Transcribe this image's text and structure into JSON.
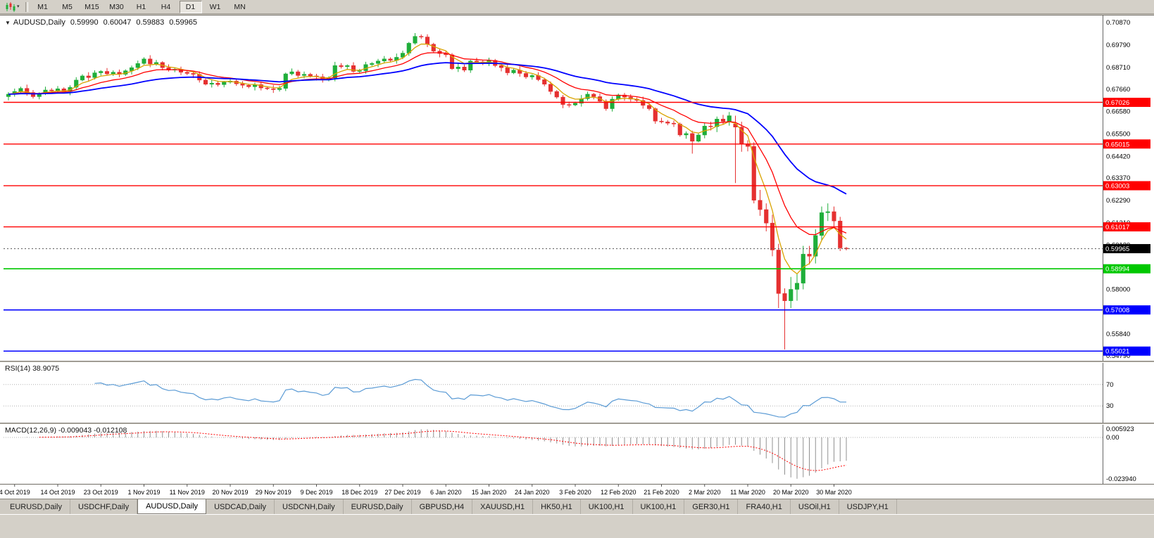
{
  "toolbar": {
    "chart_type_icon": "candlestick-chart",
    "dropdown_glyph": "▾",
    "timeframes": [
      "M1",
      "M5",
      "M15",
      "M30",
      "H1",
      "H4",
      "D1",
      "W1",
      "MN"
    ],
    "active_timeframe": "D1"
  },
  "chart": {
    "dropdown_glyph": "▼",
    "symbol": "AUDUSD,Daily",
    "open": "0.59990",
    "high": "0.60047",
    "low": "0.59883",
    "close": "0.59965"
  },
  "rsi_pane": {
    "label": "RSI(14) 38.9075",
    "levels": [
      "70",
      "30"
    ]
  },
  "macd_pane": {
    "label": "MACD(12,26,9) -0.009043 -0.012108",
    "ticks": [
      "0.005923",
      "0.00",
      "-0.023940"
    ]
  },
  "price_axis": {
    "ticks": [
      "0.70870",
      "0.69790",
      "0.68710",
      "0.67660",
      "0.66580",
      "0.65500",
      "0.64420",
      "0.63370",
      "0.62290",
      "0.61210",
      "0.60130",
      "0.59050",
      "0.58000",
      "0.56920",
      "0.55840",
      "0.54790"
    ]
  },
  "tabs": {
    "items": [
      "EURUSD,Daily",
      "USDCHF,Daily",
      "AUDUSD,Daily",
      "USDCAD,Daily",
      "USDCNH,Daily",
      "EURUSD,Daily",
      "GBPUSD,H4",
      "XAUUSD,H1",
      "HK50,H1",
      "UK100,H1",
      "UK100,H1",
      "GER30,H1",
      "FRA40,H1",
      "USOil,H1",
      "USDJPY,H1"
    ],
    "active_index": 2
  },
  "chart_data": {
    "type": "candlestick",
    "title": "AUDUSD,Daily",
    "y_axis": {
      "min": 0.5469,
      "max": 0.7098
    },
    "x_axis": {
      "labels": [
        "4 Oct 2019",
        "14 Oct 2019",
        "23 Oct 2019",
        "1 Nov 2019",
        "11 Nov 2019",
        "20 Nov 2019",
        "29 Nov 2019",
        "9 Dec 2019",
        "18 Dec 2019",
        "27 Dec 2019",
        "6 Jan 2020",
        "15 Jan 2020",
        "24 Jan 2020",
        "3 Feb 2020",
        "12 Feb 2020",
        "21 Feb 2020",
        "2 Mar 2020",
        "11 Mar 2020",
        "20 Mar 2020",
        "30 Mar 2020"
      ],
      "first_label_index": 1,
      "label_step": 7
    },
    "colors": {
      "bull": "#1fae3a",
      "bear": "#e53030",
      "background": "#ffffff",
      "rsi_line": "#5b9bd5",
      "macd_hist": "#909090",
      "macd_signal": "#ff0000"
    },
    "overlays": {
      "moving_averages": [
        {
          "name": "EMA(5)",
          "period": 5,
          "color": "#d9a300",
          "width": 1.3
        },
        {
          "name": "EMA(13)",
          "period": 13,
          "color": "#ff0000",
          "width": 1.3
        },
        {
          "name": "EMA(34)",
          "period": 34,
          "color": "#0000ff",
          "width": 1.8
        }
      ],
      "horizontal_lines": [
        {
          "price": 0.67026,
          "label": "0.67026",
          "color": "#ff0000",
          "width": 1.4
        },
        {
          "price": 0.65015,
          "label": "0.65015",
          "color": "#ff0000",
          "width": 1.4
        },
        {
          "price": 0.63003,
          "label": "0.63003",
          "color": "#ff0000",
          "width": 1.4
        },
        {
          "price": 0.61017,
          "label": "0.61017",
          "color": "#ff0000",
          "width": 1.4
        },
        {
          "price": 0.58994,
          "label": "0.58994",
          "color": "#00c800",
          "width": 1.6
        },
        {
          "price": 0.57008,
          "label": "0.57008",
          "color": "#0000ff",
          "width": 1.6
        },
        {
          "price": 0.55021,
          "label": "0.55021",
          "color": "#0000ff",
          "width": 1.6
        }
      ],
      "current_price": {
        "price": 0.59965,
        "label": "0.59965",
        "badge_color": "#000000"
      }
    },
    "indicators": [
      {
        "type": "RSI",
        "period": 14,
        "last_value": 38.9075,
        "levels": [
          70,
          30
        ]
      },
      {
        "type": "MACD",
        "fast": 12,
        "slow": 26,
        "signal": 9,
        "last_macd": -0.009043,
        "last_signal": -0.012108,
        "scale_max": 0.005923,
        "scale_min": -0.02394
      }
    ],
    "candles": [
      [
        0.673,
        0.6752,
        0.6712,
        0.6742
      ],
      [
        0.6742,
        0.6769,
        0.673,
        0.6755
      ],
      [
        0.6755,
        0.6778,
        0.6749,
        0.677
      ],
      [
        0.677,
        0.6788,
        0.6734,
        0.675
      ],
      [
        0.675,
        0.6762,
        0.6721,
        0.673
      ],
      [
        0.673,
        0.6751,
        0.6717,
        0.6745
      ],
      [
        0.6745,
        0.6778,
        0.6738,
        0.6762
      ],
      [
        0.6762,
        0.6771,
        0.6748,
        0.6758
      ],
      [
        0.6758,
        0.6781,
        0.6744,
        0.6768
      ],
      [
        0.6768,
        0.6775,
        0.6747,
        0.6755
      ],
      [
        0.6755,
        0.6785,
        0.6737,
        0.6775
      ],
      [
        0.6775,
        0.6824,
        0.6763,
        0.681
      ],
      [
        0.681,
        0.6838,
        0.6804,
        0.683
      ],
      [
        0.683,
        0.6848,
        0.6806,
        0.6822
      ],
      [
        0.6822,
        0.6857,
        0.6813,
        0.6845
      ],
      [
        0.6845,
        0.6858,
        0.6832,
        0.6852
      ],
      [
        0.6852,
        0.6868,
        0.6833,
        0.684
      ],
      [
        0.684,
        0.6857,
        0.683,
        0.6848
      ],
      [
        0.6848,
        0.6861,
        0.6824,
        0.6838
      ],
      [
        0.6838,
        0.6862,
        0.683,
        0.6855
      ],
      [
        0.6855,
        0.688,
        0.6837,
        0.687
      ],
      [
        0.687,
        0.6904,
        0.6858,
        0.689
      ],
      [
        0.689,
        0.692,
        0.6884,
        0.6912
      ],
      [
        0.6912,
        0.693,
        0.6872,
        0.6888
      ],
      [
        0.6888,
        0.6907,
        0.6879,
        0.6895
      ],
      [
        0.6895,
        0.6901,
        0.6857,
        0.687
      ],
      [
        0.687,
        0.6886,
        0.6851,
        0.6858
      ],
      [
        0.6858,
        0.6871,
        0.6848,
        0.6862
      ],
      [
        0.6862,
        0.6875,
        0.6834,
        0.6848
      ],
      [
        0.6848,
        0.6855,
        0.6834,
        0.6842
      ],
      [
        0.6842,
        0.6852,
        0.682,
        0.6838
      ],
      [
        0.6838,
        0.6852,
        0.6798,
        0.681
      ],
      [
        0.681,
        0.6818,
        0.6784,
        0.679
      ],
      [
        0.679,
        0.6813,
        0.6774,
        0.6795
      ],
      [
        0.6795,
        0.6807,
        0.6779,
        0.6788
      ],
      [
        0.6788,
        0.6806,
        0.6775,
        0.68
      ],
      [
        0.68,
        0.6821,
        0.6793,
        0.6805
      ],
      [
        0.6805,
        0.6814,
        0.6782,
        0.6792
      ],
      [
        0.6792,
        0.6805,
        0.6771,
        0.6785
      ],
      [
        0.6785,
        0.6792,
        0.677,
        0.6778
      ],
      [
        0.6778,
        0.6798,
        0.676,
        0.6788
      ],
      [
        0.6788,
        0.6802,
        0.676,
        0.6772
      ],
      [
        0.6772,
        0.678,
        0.6762,
        0.6768
      ],
      [
        0.6768,
        0.6786,
        0.6748,
        0.6764
      ],
      [
        0.6764,
        0.6782,
        0.6755,
        0.677
      ],
      [
        0.677,
        0.6846,
        0.6757,
        0.684
      ],
      [
        0.684,
        0.6866,
        0.6833,
        0.685
      ],
      [
        0.685,
        0.6859,
        0.6822,
        0.6832
      ],
      [
        0.6832,
        0.6851,
        0.6818,
        0.6838
      ],
      [
        0.6838,
        0.6845,
        0.6822,
        0.683
      ],
      [
        0.683,
        0.684,
        0.6808,
        0.6826
      ],
      [
        0.6826,
        0.684,
        0.6798,
        0.681
      ],
      [
        0.681,
        0.6828,
        0.6804,
        0.682
      ],
      [
        0.682,
        0.6898,
        0.6804,
        0.688
      ],
      [
        0.688,
        0.6892,
        0.6866,
        0.6875
      ],
      [
        0.6875,
        0.6886,
        0.6862,
        0.688
      ],
      [
        0.688,
        0.6896,
        0.6845,
        0.6852
      ],
      [
        0.6852,
        0.6864,
        0.6842,
        0.6855
      ],
      [
        0.6855,
        0.6898,
        0.6841,
        0.6885
      ],
      [
        0.6885,
        0.6897,
        0.6877,
        0.689
      ],
      [
        0.689,
        0.6912,
        0.6872,
        0.6902
      ],
      [
        0.6902,
        0.6926,
        0.689,
        0.6912
      ],
      [
        0.6912,
        0.692,
        0.6899,
        0.6905
      ],
      [
        0.6905,
        0.6938,
        0.6889,
        0.692
      ],
      [
        0.692,
        0.6952,
        0.6911,
        0.694
      ],
      [
        0.694,
        0.6994,
        0.6927,
        0.6988
      ],
      [
        0.6988,
        0.7037,
        0.6981,
        0.7021
      ],
      [
        0.7021,
        0.703,
        0.7008,
        0.7018
      ],
      [
        0.7018,
        0.7031,
        0.6969,
        0.6983
      ],
      [
        0.6983,
        0.699,
        0.6942,
        0.695
      ],
      [
        0.695,
        0.696,
        0.692,
        0.6938
      ],
      [
        0.6938,
        0.6952,
        0.692,
        0.6932
      ],
      [
        0.6932,
        0.694,
        0.6859,
        0.6865
      ],
      [
        0.6865,
        0.6891,
        0.6849,
        0.6873
      ],
      [
        0.6873,
        0.6885,
        0.6849,
        0.6858
      ],
      [
        0.6858,
        0.6908,
        0.6845,
        0.6902
      ],
      [
        0.6902,
        0.6918,
        0.6891,
        0.6898
      ],
      [
        0.6898,
        0.6907,
        0.6882,
        0.6892
      ],
      [
        0.6892,
        0.6918,
        0.6878,
        0.6905
      ],
      [
        0.6905,
        0.6912,
        0.6872,
        0.688
      ],
      [
        0.688,
        0.689,
        0.6852,
        0.687
      ],
      [
        0.687,
        0.6884,
        0.6833,
        0.6845
      ],
      [
        0.6845,
        0.6866,
        0.6839,
        0.6858
      ],
      [
        0.6858,
        0.6876,
        0.6826,
        0.6842
      ],
      [
        0.6842,
        0.6854,
        0.6816,
        0.6825
      ],
      [
        0.6825,
        0.6838,
        0.6812,
        0.6832
      ],
      [
        0.6832,
        0.6848,
        0.6805,
        0.6812
      ],
      [
        0.6812,
        0.6821,
        0.678,
        0.679
      ],
      [
        0.679,
        0.6803,
        0.6741,
        0.6755
      ],
      [
        0.6755,
        0.6762,
        0.672,
        0.6728
      ],
      [
        0.6728,
        0.6738,
        0.6674,
        0.6692
      ],
      [
        0.6692,
        0.6706,
        0.6678,
        0.669
      ],
      [
        0.669,
        0.6706,
        0.6684,
        0.6698
      ],
      [
        0.6698,
        0.6738,
        0.6682,
        0.672
      ],
      [
        0.672,
        0.6754,
        0.6711,
        0.6742
      ],
      [
        0.6742,
        0.6748,
        0.6717,
        0.673
      ],
      [
        0.673,
        0.6746,
        0.6701,
        0.6708
      ],
      [
        0.6708,
        0.6717,
        0.6662,
        0.6672
      ],
      [
        0.6672,
        0.6731,
        0.6658,
        0.6718
      ],
      [
        0.6718,
        0.6745,
        0.671,
        0.6738
      ],
      [
        0.6738,
        0.6748,
        0.671,
        0.6728
      ],
      [
        0.6728,
        0.6742,
        0.6706,
        0.6718
      ],
      [
        0.6718,
        0.6726,
        0.6706,
        0.6712
      ],
      [
        0.6712,
        0.673,
        0.6672,
        0.6688
      ],
      [
        0.6688,
        0.67,
        0.6663,
        0.6672
      ],
      [
        0.6672,
        0.6678,
        0.6599,
        0.6612
      ],
      [
        0.6612,
        0.6628,
        0.6601,
        0.6608
      ],
      [
        0.6608,
        0.6617,
        0.6592,
        0.6602
      ],
      [
        0.6602,
        0.6615,
        0.6584,
        0.6598
      ],
      [
        0.6598,
        0.6605,
        0.6537,
        0.6545
      ],
      [
        0.6545,
        0.6562,
        0.6527,
        0.6552
      ],
      [
        0.6552,
        0.6566,
        0.6455,
        0.6515
      ],
      [
        0.6515,
        0.6553,
        0.6509,
        0.6545
      ],
      [
        0.6545,
        0.6606,
        0.6529,
        0.6588
      ],
      [
        0.6588,
        0.6609,
        0.6567,
        0.6585
      ],
      [
        0.6585,
        0.6634,
        0.6559,
        0.6622
      ],
      [
        0.6622,
        0.6642,
        0.6596,
        0.661
      ],
      [
        0.661,
        0.6656,
        0.659,
        0.6638
      ],
      [
        0.6598,
        0.6638,
        0.6313,
        0.6583
      ],
      [
        0.6583,
        0.6609,
        0.6464,
        0.65
      ],
      [
        0.65,
        0.652,
        0.6466,
        0.649
      ],
      [
        0.649,
        0.651,
        0.6215,
        0.623
      ],
      [
        0.623,
        0.628,
        0.6155,
        0.6185
      ],
      [
        0.6185,
        0.6215,
        0.608,
        0.612
      ],
      [
        0.612,
        0.616,
        0.596,
        0.599
      ],
      [
        0.599,
        0.602,
        0.571,
        0.578
      ],
      [
        0.578,
        0.5805,
        0.551,
        0.5745
      ],
      [
        0.5745,
        0.586,
        0.571,
        0.58
      ],
      [
        0.58,
        0.5875,
        0.5745,
        0.583
      ],
      [
        0.583,
        0.601,
        0.58,
        0.597
      ],
      [
        0.597,
        0.601,
        0.592,
        0.596
      ],
      [
        0.596,
        0.609,
        0.5925,
        0.606
      ],
      [
        0.606,
        0.62,
        0.6035,
        0.617
      ],
      [
        0.617,
        0.6215,
        0.613,
        0.6175
      ],
      [
        0.6175,
        0.62,
        0.61,
        0.613
      ],
      [
        0.613,
        0.615,
        0.5985,
        0.6
      ],
      [
        0.5999,
        0.60047,
        0.59883,
        0.59965
      ]
    ]
  }
}
